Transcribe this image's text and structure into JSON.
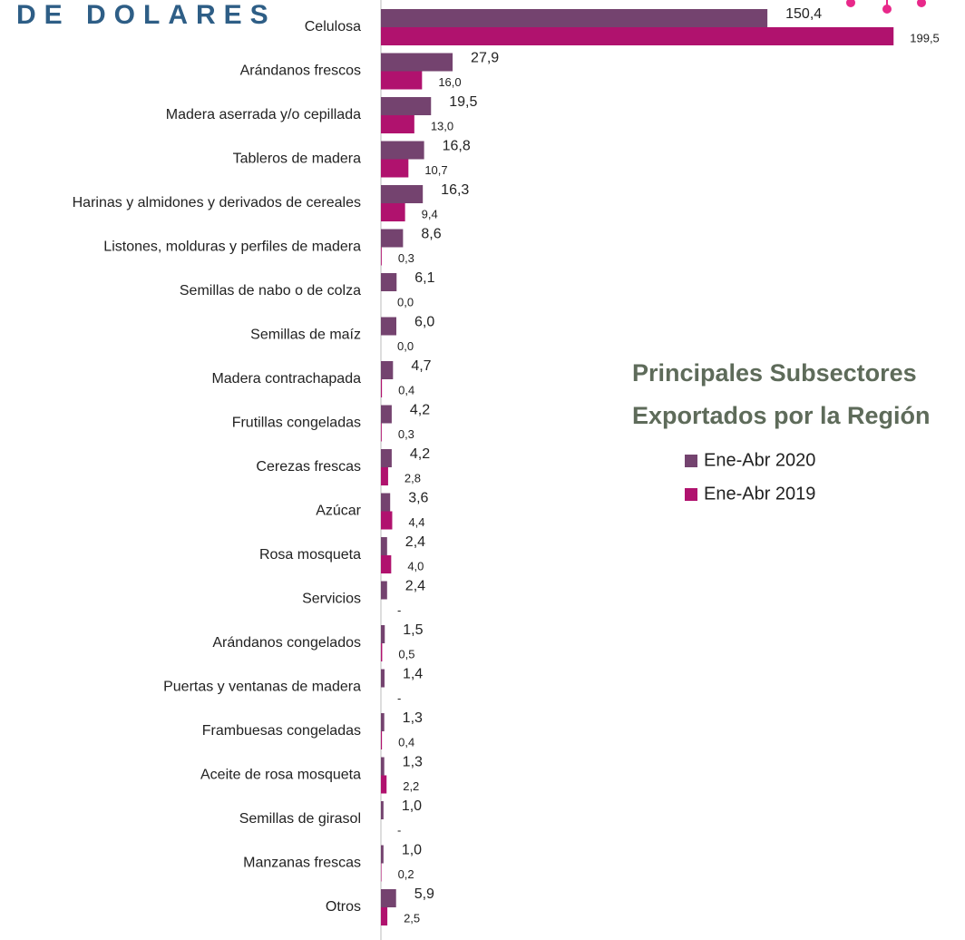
{
  "chart_data": {
    "type": "bar",
    "orientation": "horizontal",
    "top_title": "DE DOLARES",
    "title_lines": [
      "Principales Subsectores",
      "Exportados por la Región"
    ],
    "categories": [
      "Celulosa",
      "Arándanos frescos",
      "Madera aserrada y/o cepillada",
      "Tableros de madera",
      "Harinas y almidones y derivados de cereales",
      "Listones, molduras y perfiles de madera",
      "Semillas de nabo o de colza",
      "Semillas de maíz",
      "Madera contrachapada",
      "Frutillas congeladas",
      "Cerezas frescas",
      "Azúcar",
      "Rosa mosqueta",
      "Servicios",
      "Arándanos congelados",
      "Puertas y ventanas de madera",
      "Frambuesas congeladas",
      "Aceite de rosa mosqueta",
      "Semillas de girasol",
      "Manzanas frescas",
      "Otros"
    ],
    "series": [
      {
        "name": "Ene-Abr 2020",
        "color": "#74436f",
        "values": [
          150.4,
          27.9,
          19.5,
          16.8,
          16.3,
          8.6,
          6.1,
          6.0,
          4.7,
          4.2,
          4.2,
          3.6,
          2.4,
          2.4,
          1.5,
          1.4,
          1.3,
          1.3,
          1.0,
          1.0,
          5.9
        ],
        "value_labels": [
          "150,4",
          "27,9",
          "19,5",
          "16,8",
          "16,3",
          "8,6",
          "6,1",
          "6,0",
          "4,7",
          "4,2",
          "4,2",
          "3,6",
          "2,4",
          "2,4",
          "1,5",
          "1,4",
          "1,3",
          "1,3",
          "1,0",
          "1,0",
          "5,9"
        ]
      },
      {
        "name": "Ene-Abr 2019",
        "color": "#b0126e",
        "values": [
          199.5,
          16.0,
          13.0,
          10.7,
          9.4,
          0.3,
          0.0,
          0.0,
          0.4,
          0.3,
          2.8,
          4.4,
          4.0,
          null,
          0.5,
          null,
          0.4,
          2.2,
          null,
          0.2,
          2.5
        ],
        "value_labels": [
          "199,5",
          "16,0",
          "13,0",
          "10,7",
          "9,4",
          "0,3",
          "0,0",
          "0,0",
          "0,4",
          "0,3",
          "2,8",
          "4,4",
          "4,0",
          "-",
          "0,5",
          "-",
          "0,4",
          "2,2",
          "-",
          "0,2",
          "2,5"
        ]
      }
    ],
    "xlim": [
      0,
      210
    ],
    "legend": "right"
  }
}
